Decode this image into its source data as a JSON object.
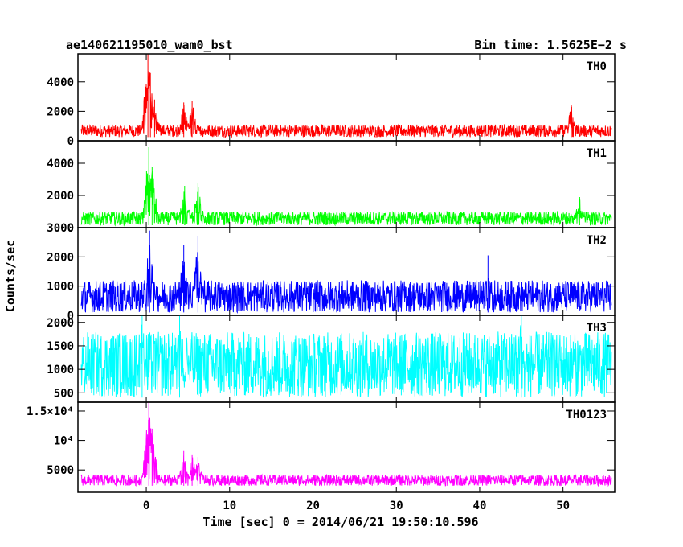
{
  "header": {
    "left_title": "ae140621195010_wam0_bst",
    "right_title": "Bin time: 1.5625E−2 s"
  },
  "chart_data": {
    "type": "line",
    "title": "ae140621195010_wam0_bst",
    "bin_time": "Bin time: 1.5625E−2 s",
    "xlabel": "Time [sec] 0 = 2014/06/21 19:50:10.596",
    "ylabel": "Counts/sec",
    "xlim": [
      -8.2,
      56.2
    ],
    "data_range": [
      -7.8,
      55.8
    ],
    "x_ticks": [
      0,
      10,
      20,
      30,
      40,
      50
    ],
    "grid": false,
    "panels": [
      {
        "name": "TH0",
        "color": "#ff0000",
        "ylim": [
          0,
          5900
        ],
        "y_ticks": [
          0,
          2000,
          4000
        ],
        "y_tick_labels": [
          "0",
          "2000",
          "4000"
        ],
        "baseline": [
          250,
          1100
        ],
        "peak_events": [
          [
            0.2,
            5900
          ],
          [
            0.5,
            4600
          ],
          [
            1.0,
            2800
          ],
          [
            4.5,
            2600
          ],
          [
            5.5,
            2700
          ],
          [
            51,
            2400
          ]
        ]
      },
      {
        "name": "TH1",
        "color": "#00ff00",
        "ylim": [
          0,
          5400
        ],
        "y_ticks": [
          0,
          2000,
          4000
        ],
        "y_tick_labels": [
          "0",
          "2000",
          "4000"
        ],
        "baseline": [
          150,
          1000
        ],
        "peak_events": [
          [
            0.3,
            5000
          ],
          [
            0.7,
            3800
          ],
          [
            4.6,
            2600
          ],
          [
            6.2,
            2800
          ],
          [
            52,
            1900
          ]
        ]
      },
      {
        "name": "TH2",
        "color": "#0000ff",
        "ylim": [
          0,
          3000
        ],
        "y_ticks": [
          0,
          1000,
          2000,
          3000
        ],
        "y_tick_labels": [
          "0",
          "1000",
          "2000",
          "3000"
        ],
        "baseline": [
          100,
          1200
        ],
        "peak_events": [
          [
            0.4,
            2900
          ],
          [
            4.5,
            2400
          ],
          [
            6.2,
            2700
          ],
          [
            41,
            2050
          ]
        ]
      },
      {
        "name": "TH3",
        "color": "#00ffff",
        "ylim": [
          300,
          2150
        ],
        "y_ticks": [
          500,
          1000,
          1500,
          2000
        ],
        "y_tick_labels": [
          "500",
          "1000",
          "1500",
          "2000"
        ],
        "baseline": [
          400,
          1800
        ],
        "peak_events": [
          [
            -0.5,
            2150
          ],
          [
            4.0,
            2150
          ],
          [
            45,
            2150
          ]
        ]
      },
      {
        "name": "TH0123",
        "color": "#ff00ff",
        "ylim": [
          1200,
          16500
        ],
        "y_ticks": [
          5000,
          10000,
          15000
        ],
        "y_tick_labels": [
          "5000",
          "10⁴",
          "1.5×10⁴"
        ],
        "baseline": [
          2300,
          4200
        ],
        "peak_events": [
          [
            0.3,
            16500
          ],
          [
            0.7,
            12000
          ],
          [
            4.5,
            8200
          ],
          [
            5.5,
            7500
          ],
          [
            6.2,
            7200
          ]
        ]
      }
    ]
  }
}
